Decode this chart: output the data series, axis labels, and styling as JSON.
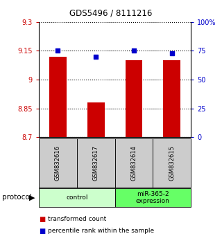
{
  "title": "GDS5496 / 8111216",
  "samples": [
    "GSM832616",
    "GSM832617",
    "GSM832614",
    "GSM832615"
  ],
  "bar_values": [
    9.12,
    8.88,
    9.1,
    9.1
  ],
  "percentile_values": [
    75,
    70,
    75,
    73
  ],
  "ylim_left": [
    8.7,
    9.3
  ],
  "ylim_right": [
    0,
    100
  ],
  "yticks_left": [
    8.7,
    8.85,
    9.0,
    9.15,
    9.3
  ],
  "ytick_labels_left": [
    "8.7",
    "8.85",
    "9",
    "9.15",
    "9.3"
  ],
  "yticks_right": [
    0,
    25,
    50,
    75,
    100
  ],
  "ytick_labels_right": [
    "0",
    "25",
    "50",
    "75",
    "100%"
  ],
  "bar_color": "#cc0000",
  "square_color": "#0000cc",
  "bar_width": 0.45,
  "groups": [
    {
      "label": "control",
      "indices": [
        0,
        1
      ],
      "color": "#ccffcc"
    },
    {
      "label": "miR-365-2\nexpression",
      "indices": [
        2,
        3
      ],
      "color": "#66ff66"
    }
  ],
  "legend_items": [
    {
      "label": "transformed count",
      "color": "#cc0000"
    },
    {
      "label": "percentile rank within the sample",
      "color": "#0000cc"
    }
  ],
  "protocol_label": "protocol",
  "sample_box_color": "#cccccc"
}
